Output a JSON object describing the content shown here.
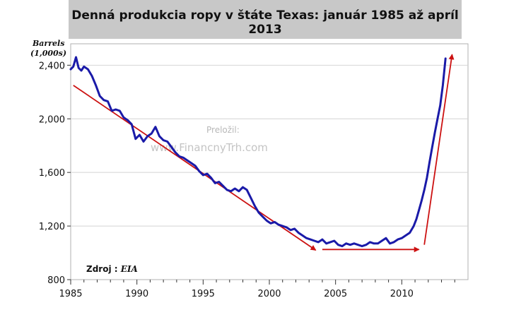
{
  "chart_data": {
    "type": "line",
    "title": "Denná produkcia ropy v štáte Texas: január 1985 až apríl 2013",
    "ylabel_line1": "Barrels",
    "ylabel_line2": "(1,000s)",
    "xlabel": "",
    "xlim": [
      1985,
      2015
    ],
    "ylim": [
      800,
      2560
    ],
    "xticks": [
      1985,
      1990,
      1995,
      2000,
      2005,
      2010
    ],
    "xtick_labels": [
      "1985",
      "1990",
      "1995",
      "2000",
      "2005",
      "2010"
    ],
    "yticks": [
      800,
      1200,
      1600,
      2000,
      2400
    ],
    "ytick_labels": [
      "800",
      "1,200",
      "1,600",
      "2,000",
      "2,400"
    ],
    "grid": "horizontal",
    "series": [
      {
        "color": "#1a1aa8",
        "x": [
          1985.0,
          1985.2,
          1985.4,
          1985.6,
          1985.8,
          1986.0,
          1986.3,
          1986.6,
          1986.9,
          1987.2,
          1987.5,
          1987.8,
          1988.1,
          1988.4,
          1988.7,
          1989.0,
          1989.3,
          1989.6,
          1989.9,
          1990.2,
          1990.5,
          1990.8,
          1991.1,
          1991.4,
          1991.7,
          1992.0,
          1992.3,
          1992.6,
          1992.9,
          1993.2,
          1993.5,
          1993.8,
          1994.1,
          1994.4,
          1994.7,
          1995.0,
          1995.3,
          1995.6,
          1995.9,
          1996.2,
          1996.5,
          1996.8,
          1997.1,
          1997.4,
          1997.7,
          1998.0,
          1998.3,
          1998.6,
          1998.9,
          1999.2,
          1999.5,
          1999.8,
          2000.1,
          2000.4,
          2000.7,
          2001.0,
          2001.3,
          2001.6,
          2001.9,
          2002.2,
          2002.5,
          2002.8,
          2003.1,
          2003.4,
          2003.7,
          2004.0,
          2004.3,
          2004.6,
          2004.9,
          2005.2,
          2005.5,
          2005.8,
          2006.1,
          2006.4,
          2006.7,
          2007.0,
          2007.3,
          2007.6,
          2007.9,
          2008.2,
          2008.5,
          2008.8,
          2009.1,
          2009.4,
          2009.7,
          2010.0,
          2010.3,
          2010.6,
          2010.9,
          2011.1,
          2011.3,
          2011.5,
          2011.7,
          2011.9,
          2012.1,
          2012.3,
          2012.5,
          2012.7,
          2012.9,
          2013.1,
          2013.3
        ],
        "values": [
          2370,
          2390,
          2460,
          2380,
          2360,
          2390,
          2370,
          2320,
          2250,
          2170,
          2140,
          2130,
          2060,
          2070,
          2060,
          2010,
          1990,
          1960,
          1850,
          1880,
          1830,
          1870,
          1890,
          1940,
          1870,
          1840,
          1830,
          1790,
          1750,
          1720,
          1710,
          1690,
          1670,
          1650,
          1610,
          1580,
          1590,
          1560,
          1520,
          1530,
          1500,
          1470,
          1460,
          1480,
          1460,
          1490,
          1470,
          1410,
          1350,
          1300,
          1270,
          1240,
          1220,
          1230,
          1210,
          1200,
          1190,
          1170,
          1180,
          1150,
          1130,
          1110,
          1100,
          1090,
          1080,
          1100,
          1070,
          1080,
          1090,
          1060,
          1050,
          1070,
          1060,
          1070,
          1060,
          1050,
          1060,
          1080,
          1070,
          1070,
          1090,
          1110,
          1070,
          1080,
          1100,
          1110,
          1130,
          1150,
          1200,
          1250,
          1320,
          1390,
          1470,
          1560,
          1680,
          1790,
          1900,
          2000,
          2100,
          2250,
          2450
        ]
      }
    ],
    "annotations": {
      "arrows": [
        {
          "from": [
            1985.2,
            2250
          ],
          "to": [
            2003.5,
            1020
          ],
          "color": "#cc1111"
        },
        {
          "from": [
            2004.0,
            1025
          ],
          "to": [
            2011.3,
            1025
          ],
          "color": "#cc1111"
        },
        {
          "from": [
            2011.7,
            1060
          ],
          "to": [
            2013.8,
            2480
          ],
          "color": "#cc1111"
        }
      ]
    },
    "watermark_line1": "Preložil:",
    "watermark_line2": "www.FinancnyTrh.com",
    "source_label": "Zdroj : ",
    "source_value": "EIA"
  }
}
